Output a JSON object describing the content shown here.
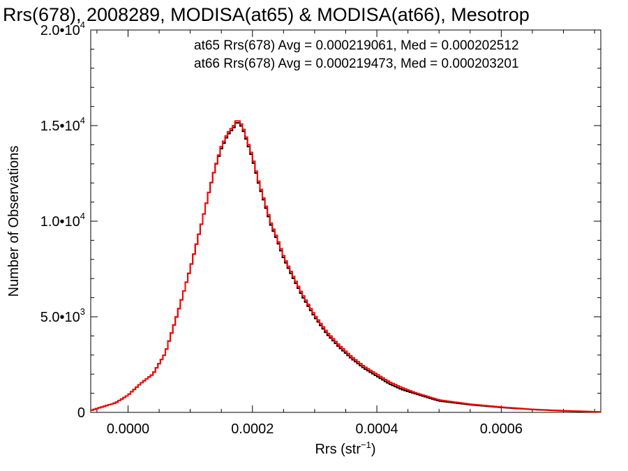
{
  "colors": {
    "background": "#ffffff",
    "series_1": "#000000",
    "series_2": "#ff0000"
  },
  "chart_data": {
    "type": "line",
    "title": "Rrs(678), 2008289, MODISA(at65) & MODISA(at66), Mesotrop",
    "xlabel": {
      "base": "Rrs (str",
      "sup": "−1",
      "tail": ")"
    },
    "ylabel": "Number of Observations",
    "xlim": [
      -6e-05,
      0.00076
    ],
    "ylim": [
      0,
      20000
    ],
    "grid": false,
    "x_ticks": [
      {
        "value": 0.0,
        "label": "0.0000"
      },
      {
        "value": 0.0002,
        "label": "0.0002"
      },
      {
        "value": 0.0004,
        "label": "0.0004"
      },
      {
        "value": 0.0006,
        "label": "0.0006"
      }
    ],
    "y_ticks": [
      {
        "value": 0,
        "label": "0",
        "exp": ""
      },
      {
        "value": 5000,
        "label": "5.0•10",
        "exp": "3"
      },
      {
        "value": 10000,
        "label": "1.0•10",
        "exp": "4"
      },
      {
        "value": 15000,
        "label": "1.5•10",
        "exp": "4"
      },
      {
        "value": 20000,
        "label": "2.0•10",
        "exp": "4"
      }
    ],
    "annotations": [
      {
        "text": "at65 Rrs(678) Avg = 0.000219061, Med = 0.000202512",
        "color": "#000000"
      },
      {
        "text": "at66 Rrs(678) Avg = 0.000219473, Med = 0.000203201",
        "color": "#ff0000"
      }
    ],
    "x": [
      -6e-05,
      -4e-05,
      -2e-05,
      0.0,
      2e-05,
      4e-05,
      6e-05,
      8e-05,
      0.0001,
      0.00012,
      0.00013,
      0.00014,
      0.00015,
      0.00016,
      0.00017,
      0.000175,
      0.00018,
      0.000185,
      0.00019,
      0.0002,
      0.00021,
      0.00022,
      0.00023,
      0.00024,
      0.00025,
      0.00026,
      0.00028,
      0.0003,
      0.00032,
      0.00034,
      0.00036,
      0.00038,
      0.0004,
      0.00042,
      0.00044,
      0.00046,
      0.00048,
      0.0005,
      0.00055,
      0.0006,
      0.00065,
      0.0007,
      0.00076
    ],
    "series": [
      {
        "name": "at65",
        "color": "#000000",
        "values": [
          100,
          300,
          500,
          900,
          1500,
          2000,
          3100,
          5200,
          7500,
          10100,
          11500,
          12800,
          13800,
          14500,
          14900,
          15200,
          15100,
          14800,
          14300,
          13300,
          12000,
          10900,
          9800,
          9000,
          8100,
          7400,
          6100,
          5000,
          4100,
          3400,
          2800,
          2300,
          1900,
          1500,
          1200,
          1000,
          800,
          600,
          400,
          260,
          150,
          80,
          20
        ]
      },
      {
        "name": "at66",
        "color": "#ff0000",
        "values": [
          100,
          300,
          500,
          900,
          1500,
          2000,
          3100,
          5200,
          7500,
          10100,
          11500,
          12800,
          13900,
          14600,
          15000,
          15300,
          15200,
          14900,
          14400,
          13400,
          12100,
          11000,
          9900,
          9100,
          8200,
          7500,
          6200,
          5100,
          4200,
          3500,
          2900,
          2400,
          2000,
          1600,
          1300,
          1050,
          850,
          650,
          430,
          280,
          160,
          90,
          25
        ]
      }
    ]
  }
}
